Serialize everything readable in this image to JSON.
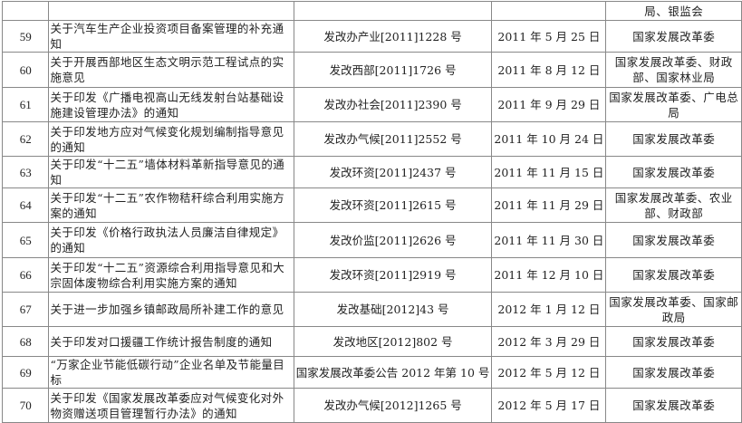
{
  "partial_row": {
    "issuer": "局、银监会"
  },
  "rows": [
    {
      "num": "59",
      "title": "关于汽车生产企业投资项目备案管理的补充通知",
      "doc": "发改办产业[2011]1228 号",
      "date": "2011 年 5 月 25 日",
      "issuer": "国家发展改革委"
    },
    {
      "num": "60",
      "title": "关于开展西部地区生态文明示范工程试点的实施意见",
      "doc": "发改西部[2011]1726 号",
      "date": "2011 年 8 月 12 日",
      "issuer": "国家发展改革委、财政部、国家林业局"
    },
    {
      "num": "61",
      "title": "关于印发《广播电视高山无线发射台站基础设施建设管理办法》的通知",
      "doc": "发改办社会[2011]2390 号",
      "date": "2011 年 9 月 29 日",
      "issuer": "国家发展改革委、广电总局"
    },
    {
      "num": "62",
      "title": "关于印发地方应对气候变化规划编制指导意见的通知",
      "doc": "发改办气候[2011]2552 号",
      "date": "2011 年 10 月 24 日",
      "issuer": "国家发展改革委"
    },
    {
      "num": "63",
      "title": "关于印发“十二五”墙体材料革新指导意见的通知",
      "doc": "发改环资[2011]2437 号",
      "date": "2011 年 11 月 15 日",
      "issuer": "国家发展改革委"
    },
    {
      "num": "64",
      "title": "关于印发“十二五”农作物秸秆综合利用实施方案的通知",
      "doc": "发改环资[2011]2615 号",
      "date": "2011 年 11 月 29 日",
      "issuer": "国家发展改革委、农业部、财政部"
    },
    {
      "num": "65",
      "title": "关于印发《价格行政执法人员廉洁自律规定》的通知",
      "doc": "发改价监[2011]2626 号",
      "date": "2011 年 11 月 30 日",
      "issuer": "国家发展改革委"
    },
    {
      "num": "66",
      "title": "关于印发“十二五”资源综合利用指导意见和大宗固体废物综合利用实施方案的通知",
      "doc": "发改环资[2011]2919 号",
      "date": "2011 年 12 月 10 日",
      "issuer": "国家发展改革委"
    },
    {
      "num": "67",
      "title": "关于进一步加强乡镇邮政局所补建工作的意见",
      "doc": "发改基础[2012]43 号",
      "date": "2012 年 1 月 12 日",
      "issuer": "国家发展改革委、国家邮政局"
    },
    {
      "num": "68",
      "title": "关于印发对口援疆工作统计报告制度的通知",
      "doc": "发改地区[2012]802 号",
      "date": "2012 年 3 月 29 日",
      "issuer": "国家发展改革委"
    },
    {
      "num": "69",
      "title": "“万家企业节能低碳行动”企业名单及节能量目标",
      "doc": "国家发展改革委公告 2012 年第 10 号",
      "date": "2012 年 5 月 12 日",
      "issuer": "国家发展改革委"
    },
    {
      "num": "70",
      "title": "关于印发《国家发展改革委应对气候变化对外物资赠送项目管理暂行办法》的通知",
      "doc": "发改办气候[2012]1265 号",
      "date": "2012 年 5 月 17 日",
      "issuer": "国家发展改革委"
    }
  ]
}
